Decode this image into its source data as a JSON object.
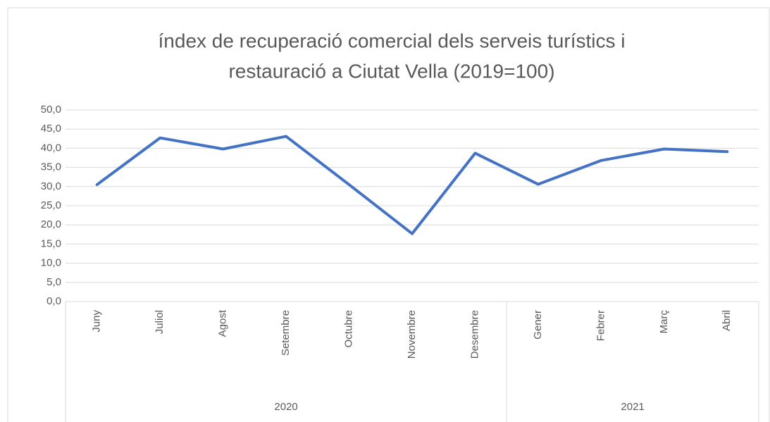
{
  "chart_data": {
    "type": "line",
    "title": [
      "índex de recuperació comercial dels serveis turístics i",
      "restauració a Ciutat Vella  (2019=100)"
    ],
    "categories": [
      "Juny",
      "Juliol",
      "Agost",
      "Setembre",
      "Octubre",
      "Novembre",
      "Desembre",
      "Gener",
      "Febrer",
      "Març",
      "Abril"
    ],
    "category_groups": [
      {
        "label": "2020",
        "span": 7
      },
      {
        "label": "2021",
        "span": 4
      }
    ],
    "series": [
      {
        "name": "índex",
        "color": "#4472c4",
        "values": [
          30.5,
          42.7,
          39.8,
          43.1,
          30.5,
          17.7,
          38.7,
          30.6,
          36.8,
          39.8,
          39.1
        ]
      }
    ],
    "ylim": [
      0,
      50
    ],
    "yticks": [
      {
        "value": 0,
        "label": "0,0"
      },
      {
        "value": 5,
        "label": "5,0"
      },
      {
        "value": 10,
        "label": "10,0"
      },
      {
        "value": 15,
        "label": "15,0"
      },
      {
        "value": 20,
        "label": "20,0"
      },
      {
        "value": 25,
        "label": "25,0"
      },
      {
        "value": 30,
        "label": "30,0"
      },
      {
        "value": 35,
        "label": "35,0"
      },
      {
        "value": 40,
        "label": "40,0"
      },
      {
        "value": 45,
        "label": "45,0"
      },
      {
        "value": 50,
        "label": "50,0"
      }
    ],
    "grid": true
  }
}
